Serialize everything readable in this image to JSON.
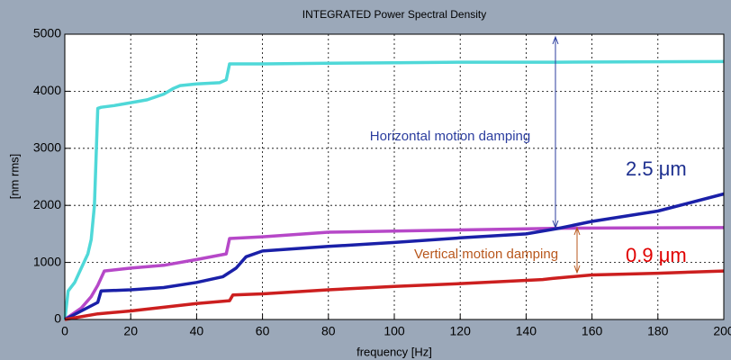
{
  "chart_data": {
    "type": "line",
    "title": "INTEGRATED Power Spectral Density",
    "xlabel": "frequency [Hz]",
    "ylabel": "[nm rms]",
    "xlim": [
      0,
      200
    ],
    "ylim": [
      0,
      5000
    ],
    "xticks": [
      0,
      20,
      40,
      60,
      80,
      100,
      120,
      140,
      160,
      180,
      200
    ],
    "yticks": [
      0,
      1000,
      2000,
      3000,
      4000,
      5000
    ],
    "grid": true,
    "series": [
      {
        "color": "#4fd8d8",
        "x": [
          0,
          1,
          3,
          5,
          7,
          8,
          9,
          10,
          11,
          15,
          20,
          25,
          30,
          33,
          35,
          40,
          47,
          49,
          50,
          60,
          80,
          100,
          120,
          150,
          200
        ],
        "values": [
          0,
          500,
          650,
          900,
          1150,
          1400,
          2000,
          3700,
          3720,
          3750,
          3800,
          3850,
          3950,
          4050,
          4100,
          4130,
          4150,
          4200,
          4480,
          4480,
          4490,
          4500,
          4510,
          4510,
          4520
        ]
      },
      {
        "color": "#b648c8",
        "x": [
          0,
          5,
          8,
          10,
          12,
          20,
          30,
          40,
          49,
          50,
          60,
          80,
          100,
          120,
          150,
          200
        ],
        "values": [
          0,
          200,
          400,
          600,
          850,
          900,
          950,
          1050,
          1150,
          1420,
          1450,
          1530,
          1550,
          1570,
          1600,
          1610
        ]
      },
      {
        "color": "#1a20a8",
        "x": [
          0,
          5,
          10,
          11,
          20,
          30,
          40,
          48,
          52,
          55,
          60,
          80,
          100,
          120,
          140,
          150,
          160,
          180,
          200
        ],
        "values": [
          0,
          150,
          300,
          500,
          520,
          560,
          650,
          750,
          900,
          1100,
          1200,
          1280,
          1350,
          1430,
          1500,
          1600,
          1720,
          1900,
          2200
        ]
      },
      {
        "color": "#cc1f1f",
        "x": [
          0,
          10,
          20,
          40,
          50,
          51,
          60,
          80,
          100,
          120,
          145,
          148,
          160,
          180,
          200
        ],
        "values": [
          0,
          100,
          150,
          280,
          330,
          430,
          450,
          520,
          580,
          630,
          700,
          720,
          780,
          810,
          850
        ]
      }
    ],
    "annotations": [
      "Horizontal motion damping",
      "2.5 μm",
      "Vertical motion damping",
      "0.9 μm"
    ]
  }
}
